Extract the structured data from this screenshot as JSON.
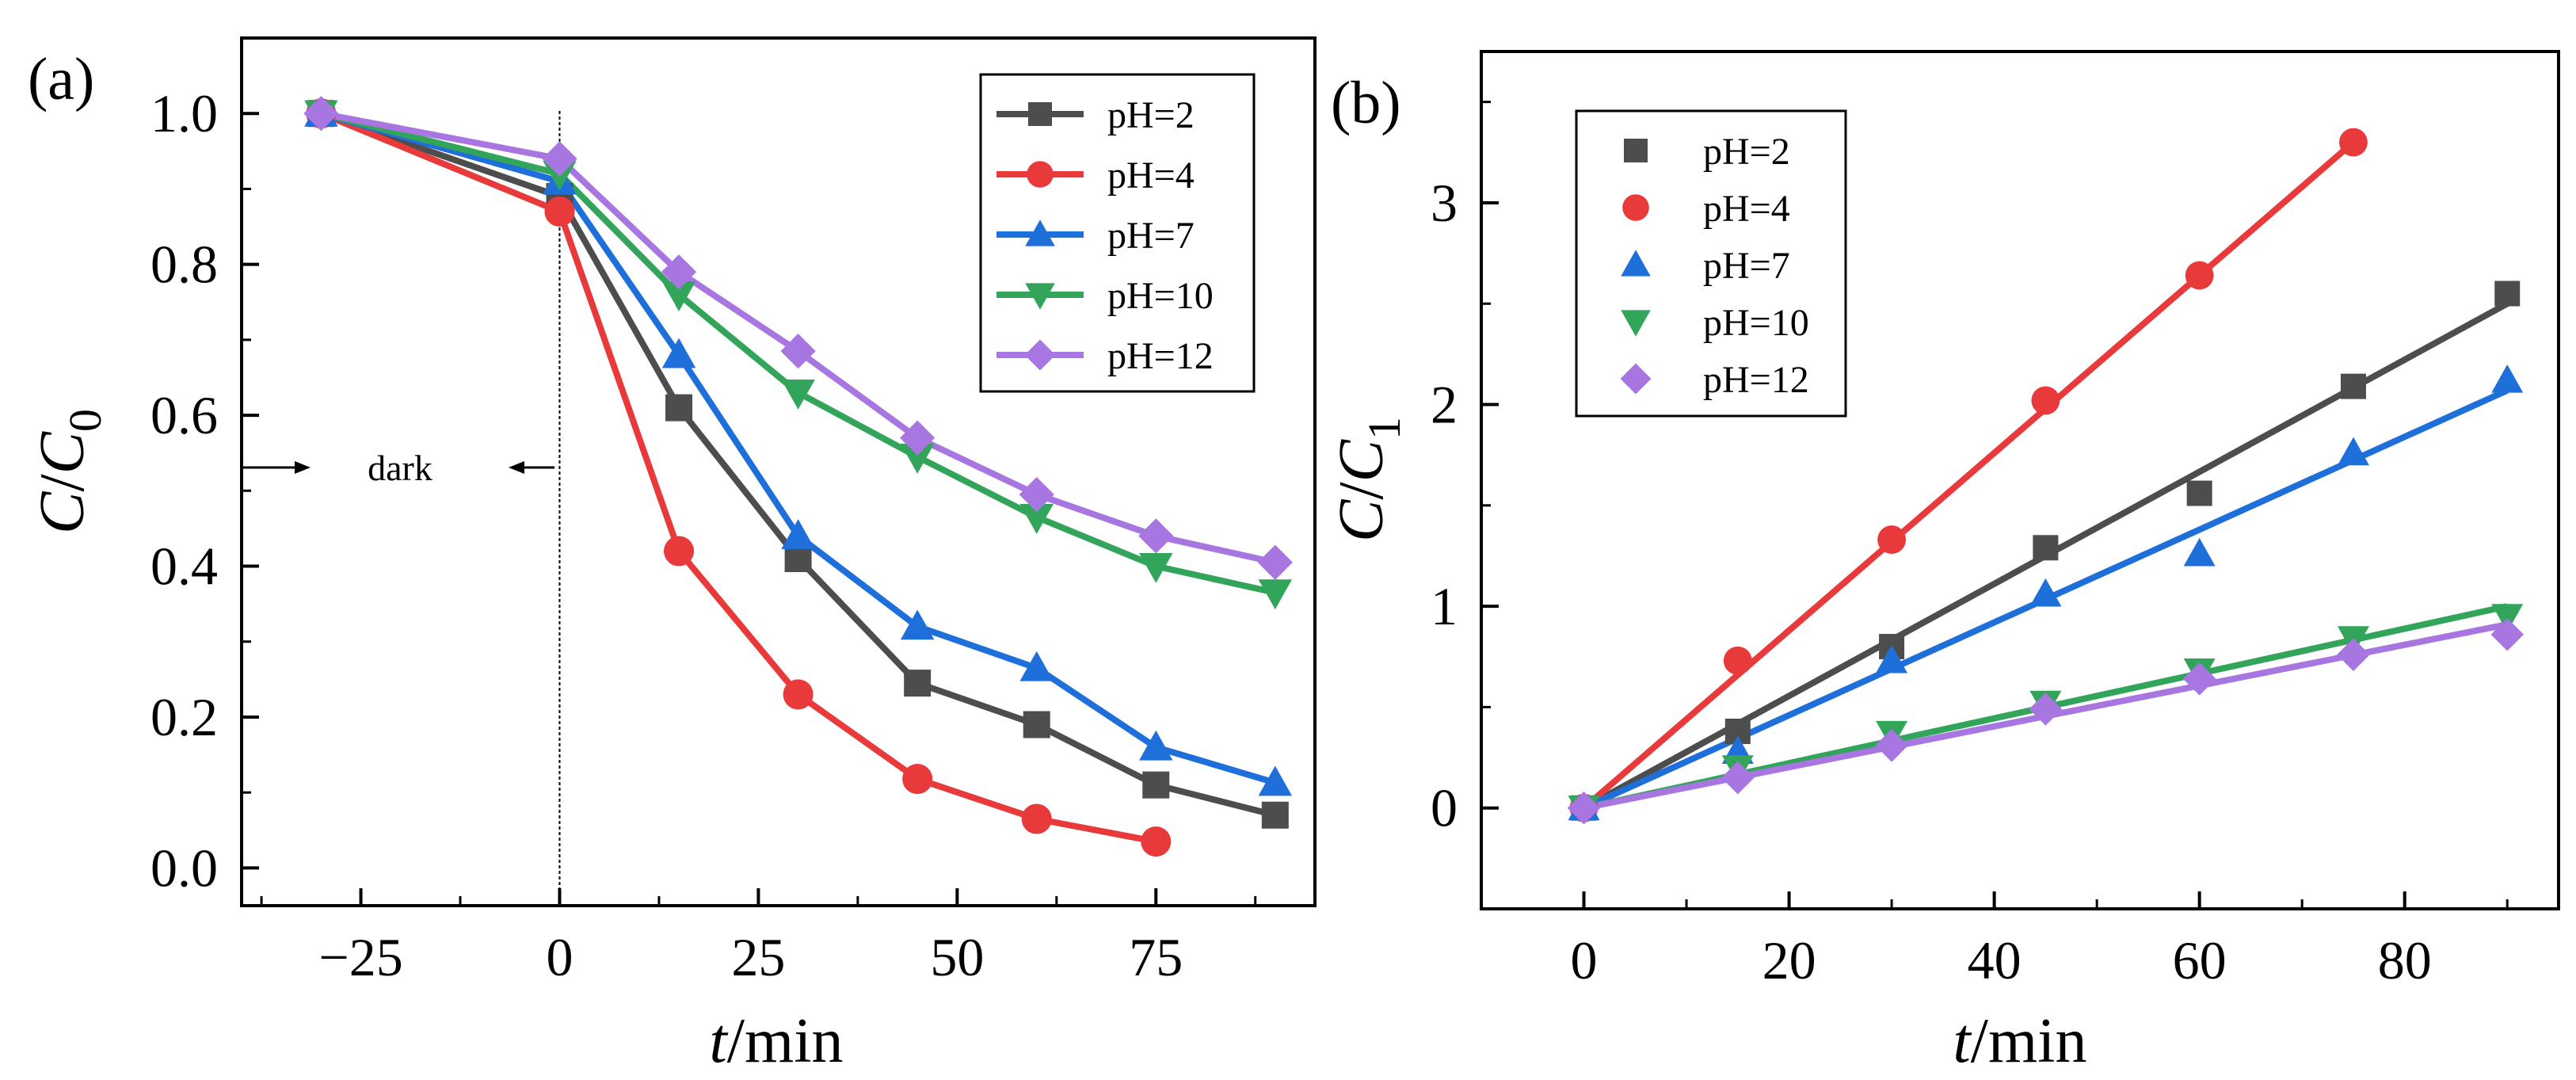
{
  "figure": {
    "panel_labels": [
      "(a)",
      "(b)"
    ]
  },
  "chart_data": [
    {
      "type": "line",
      "panel": "(a)",
      "title": "",
      "xlabel": {
        "italic": "t",
        "rest": "/min"
      },
      "ylabel": {
        "italic": "C",
        "rest": "/",
        "italic2": "C",
        "subscript": "0"
      },
      "xlim": [
        -40,
        95
      ],
      "ylim": [
        -0.05,
        1.1
      ],
      "xticks": [
        -25,
        0,
        25,
        50,
        75
      ],
      "xtick_labels": [
        "−25",
        "0",
        "25",
        "50",
        "75"
      ],
      "yticks": [
        0.0,
        0.2,
        0.4,
        0.6,
        0.8,
        1.0
      ],
      "ytick_labels": [
        "0.0",
        "0.2",
        "0.4",
        "0.6",
        "0.8",
        "1.0"
      ],
      "legend_position": "top-right",
      "annotation": {
        "text": "dark",
        "divider_x": 0
      },
      "x": [
        -30,
        0,
        15,
        30,
        45,
        60,
        75,
        90
      ],
      "series": [
        {
          "name": "pH=2",
          "color": "#4d4d4d",
          "marker": "square",
          "values": [
            1.0,
            0.89,
            0.61,
            0.41,
            0.245,
            0.19,
            0.11,
            0.07
          ]
        },
        {
          "name": "pH=4",
          "color": "#e8393b",
          "marker": "circle",
          "values": [
            1.0,
            0.87,
            0.42,
            0.23,
            0.118,
            0.065,
            0.035,
            null
          ]
        },
        {
          "name": "pH=7",
          "color": "#1f6fdb",
          "marker": "triangle-up",
          "values": [
            1.0,
            0.91,
            0.68,
            0.44,
            0.32,
            0.265,
            0.16,
            0.113
          ]
        },
        {
          "name": "pH=10",
          "color": "#33a55b",
          "marker": "triangle-down",
          "values": [
            1.0,
            0.92,
            0.76,
            0.63,
            0.545,
            0.465,
            0.4,
            0.365
          ]
        },
        {
          "name": "pH=12",
          "color": "#a876e0",
          "marker": "diamond",
          "values": [
            1.0,
            0.94,
            0.79,
            0.685,
            0.57,
            0.495,
            0.44,
            0.405
          ]
        }
      ]
    },
    {
      "type": "scatter",
      "panel": "(b)",
      "title": "",
      "xlabel": {
        "italic": "t",
        "rest": "/min"
      },
      "ylabel": {
        "italic": "C",
        "rest": "/",
        "italic2": "C",
        "subscript": "1"
      },
      "xlim": [
        -10,
        95
      ],
      "ylim": [
        -0.5,
        3.75
      ],
      "xticks": [
        0,
        20,
        40,
        60,
        80
      ],
      "xtick_labels": [
        "0",
        "20",
        "40",
        "60",
        "80"
      ],
      "yticks": [
        0,
        1,
        2,
        3
      ],
      "ytick_labels": [
        "0",
        "1",
        "2",
        "3"
      ],
      "legend_position": "top-left",
      "x": [
        0,
        15,
        30,
        45,
        60,
        75,
        90
      ],
      "series": [
        {
          "name": "pH=2",
          "color": "#4d4d4d",
          "marker": "square",
          "values": [
            0,
            0.38,
            0.8,
            1.29,
            1.56,
            2.09,
            2.55
          ],
          "fit": {
            "x": [
              0,
              90
            ],
            "y": [
              0,
              2.5
            ]
          }
        },
        {
          "name": "pH=4",
          "color": "#e8393b",
          "marker": "circle",
          "values": [
            0,
            0.73,
            1.33,
            2.02,
            2.64,
            3.3,
            null
          ],
          "fit": {
            "x": [
              0,
              75
            ],
            "y": [
              0,
              3.3
            ]
          }
        },
        {
          "name": "pH=7",
          "color": "#1f6fdb",
          "marker": "triangle-up",
          "values": [
            0,
            0.28,
            0.73,
            1.06,
            1.26,
            1.76,
            2.12
          ],
          "fit": {
            "x": [
              0,
              90
            ],
            "y": [
              0,
              2.07
            ]
          }
        },
        {
          "name": "pH=10",
          "color": "#33a55b",
          "marker": "triangle-down",
          "values": [
            0,
            0.2,
            0.37,
            0.52,
            0.68,
            0.84,
            0.95
          ],
          "fit": {
            "x": [
              0,
              90
            ],
            "y": [
              0,
              1.0
            ]
          }
        },
        {
          "name": "pH=12",
          "color": "#a876e0",
          "marker": "diamond",
          "values": [
            0,
            0.15,
            0.31,
            0.49,
            0.64,
            0.76,
            0.86
          ],
          "fit": {
            "x": [
              0,
              90
            ],
            "y": [
              0,
              0.91
            ]
          }
        }
      ]
    }
  ]
}
